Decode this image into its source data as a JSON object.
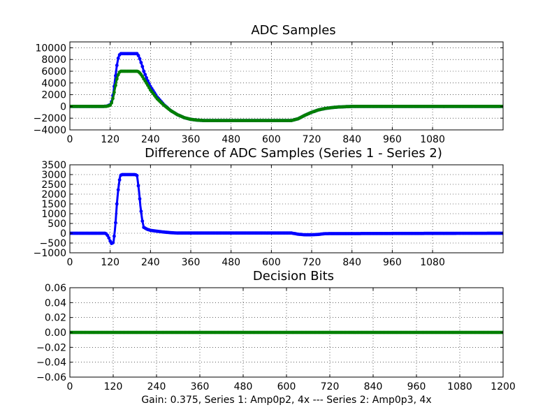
{
  "figure": {
    "xlabel": "Gain: 0.375, Series 1: Amp0p2, 4x --- Series 2: Amp0p3, 4x",
    "colors": {
      "series1": "#0000ff",
      "series2": "#007f00"
    }
  },
  "chart_data": [
    {
      "type": "scatter",
      "title": "ADC Samples",
      "xlim": [
        0,
        1290
      ],
      "ylim": [
        -4000,
        11000
      ],
      "xticks": [
        0,
        120,
        240,
        360,
        480,
        600,
        720,
        840,
        960,
        1080
      ],
      "yticks": [
        -4000,
        -2000,
        0,
        2000,
        4000,
        6000,
        8000,
        10000
      ],
      "xtick_labels": [
        "0",
        "120",
        "240",
        "360",
        "480",
        "600",
        "720",
        "840",
        "960",
        "1080"
      ],
      "ytick_labels": [
        "−4000",
        "−2000",
        "0",
        "2000",
        "4000",
        "6000",
        "8000",
        "10000"
      ],
      "grid": true,
      "series": [
        {
          "color": "#0000ff",
          "x": [
            0,
            100,
            110,
            120,
            125,
            130,
            135,
            140,
            145,
            150,
            200,
            205,
            210,
            215,
            220,
            230,
            240,
            260,
            280,
            300,
            320,
            340,
            360,
            380,
            400,
            660,
            680,
            700,
            720,
            740,
            760,
            780,
            800,
            820,
            840,
            860,
            1290
          ],
          "y": [
            0,
            0,
            50,
            300,
            900,
            2500,
            4800,
            7000,
            8500,
            9000,
            9000,
            8600,
            7800,
            7000,
            6000,
            4600,
            3400,
            1600,
            300,
            -700,
            -1400,
            -1900,
            -2200,
            -2350,
            -2400,
            -2400,
            -2100,
            -1500,
            -1000,
            -600,
            -350,
            -200,
            -100,
            -50,
            0,
            0,
            0
          ]
        },
        {
          "color": "#007f00",
          "x": [
            0,
            100,
            110,
            120,
            125,
            130,
            135,
            140,
            145,
            150,
            200,
            205,
            210,
            215,
            220,
            230,
            240,
            260,
            280,
            300,
            320,
            340,
            360,
            380,
            400,
            660,
            680,
            700,
            720,
            740,
            760,
            780,
            800,
            820,
            840,
            860,
            1290
          ],
          "y": [
            0,
            0,
            20,
            200,
            700,
            1800,
            3300,
            4700,
            5600,
            6000,
            6000,
            5900,
            5600,
            5200,
            4700,
            3800,
            2800,
            1300,
            200,
            -700,
            -1400,
            -1900,
            -2200,
            -2350,
            -2400,
            -2400,
            -2100,
            -1500,
            -1000,
            -600,
            -350,
            -200,
            -100,
            -50,
            0,
            0,
            0
          ]
        }
      ]
    },
    {
      "type": "scatter",
      "title": "Difference of ADC Samples (Series 1 - Series 2)",
      "xlim": [
        0,
        1290
      ],
      "ylim": [
        -1000,
        3500
      ],
      "xticks": [
        0,
        120,
        240,
        360,
        480,
        600,
        720,
        840,
        960,
        1080
      ],
      "yticks": [
        -1000,
        -500,
        0,
        500,
        1000,
        1500,
        2000,
        2500,
        3000,
        3500
      ],
      "xtick_labels": [
        "0",
        "120",
        "240",
        "360",
        "480",
        "600",
        "720",
        "840",
        "960",
        "1080"
      ],
      "ytick_labels": [
        "−1000",
        "−500",
        "0",
        "500",
        "1000",
        "1500",
        "2000",
        "2500",
        "3000",
        "3500"
      ],
      "grid": true,
      "series": [
        {
          "color": "#0000ff",
          "x": [
            0,
            105,
            110,
            115,
            120,
            125,
            130,
            135,
            140,
            145,
            150,
            155,
            195,
            200,
            205,
            210,
            215,
            220,
            225,
            230,
            240,
            260,
            280,
            300,
            320,
            660,
            680,
            700,
            720,
            740,
            760,
            1290
          ],
          "y": [
            0,
            0,
            -50,
            -200,
            -400,
            -550,
            -450,
            300,
            1500,
            2400,
            2950,
            3000,
            3000,
            2950,
            2300,
            1400,
            700,
            300,
            250,
            200,
            150,
            100,
            60,
            30,
            10,
            10,
            -50,
            -80,
            -80,
            -60,
            -20,
            0
          ]
        }
      ]
    },
    {
      "type": "scatter",
      "title": "Decision Bits",
      "xlim": [
        0,
        1200
      ],
      "ylim": [
        -0.06,
        0.06
      ],
      "xticks": [
        0,
        120,
        240,
        360,
        480,
        600,
        720,
        840,
        960,
        1080,
        1200
      ],
      "yticks": [
        -0.06,
        -0.04,
        -0.02,
        0.0,
        0.02,
        0.04,
        0.06
      ],
      "xtick_labels": [
        "0",
        "120",
        "240",
        "360",
        "480",
        "600",
        "720",
        "840",
        "960",
        "1080",
        "1200"
      ],
      "ytick_labels": [
        "−0.06",
        "−0.04",
        "−0.02",
        "0.00",
        "0.02",
        "0.04",
        "0.06"
      ],
      "grid": true,
      "series": [
        {
          "color": "#007f00",
          "x": [
            0,
            1200
          ],
          "y": [
            0,
            0
          ]
        }
      ]
    }
  ]
}
